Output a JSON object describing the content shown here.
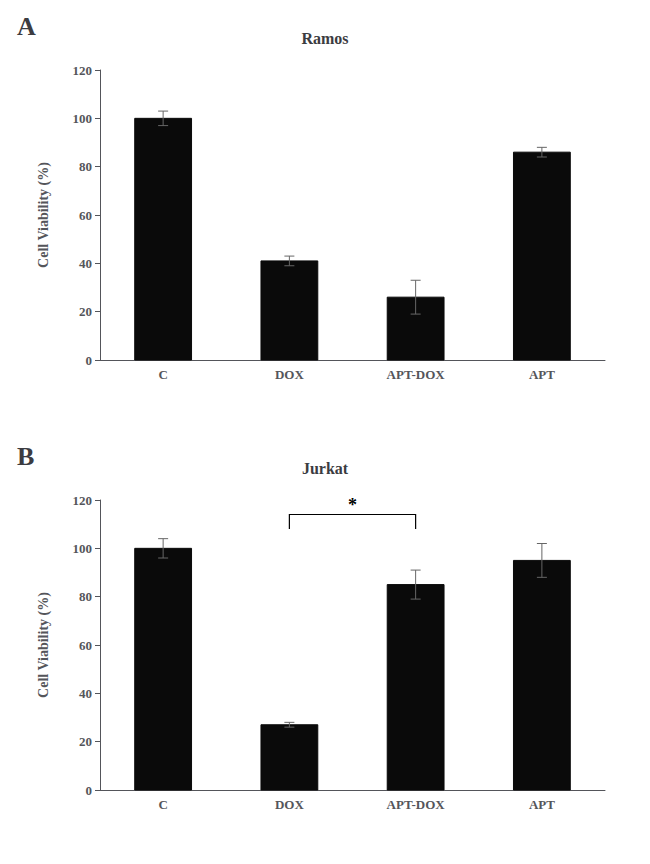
{
  "chart_data": [
    {
      "type": "bar",
      "title": "Ramos",
      "panel_label": "A",
      "categories": [
        "C",
        "DOX",
        "APT-DOX",
        "APT"
      ],
      "values": [
        100,
        41,
        26,
        86
      ],
      "errors": [
        3,
        2,
        7,
        2
      ],
      "color": "#0a0a0a",
      "ylim": [
        0,
        120
      ],
      "yticks": [
        0,
        20,
        40,
        60,
        80,
        100,
        120
      ],
      "ylabel": "Cell Viability (%)",
      "grid": false
    },
    {
      "type": "bar",
      "title": "Jurkat",
      "panel_label": "B",
      "categories": [
        "C",
        "DOX",
        "APT-DOX",
        "APT"
      ],
      "values": [
        100,
        27,
        85,
        95
      ],
      "errors": [
        4,
        1,
        6,
        7
      ],
      "color": "#0a0a0a",
      "ylim": [
        0,
        120
      ],
      "yticks": [
        0,
        20,
        40,
        60,
        80,
        100,
        120
      ],
      "ylabel": "Cell Viability (%)",
      "grid": false,
      "significance": {
        "from": "DOX",
        "to": "APT-DOX",
        "y": 114,
        "y_tick": 108,
        "label": "*"
      }
    }
  ]
}
